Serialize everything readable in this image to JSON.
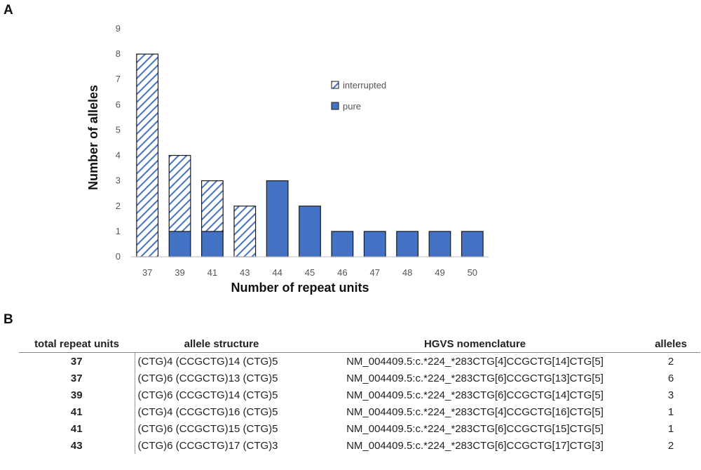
{
  "panel_a_label": "A",
  "panel_b_label": "B",
  "chart_data": {
    "type": "bar",
    "stacked": true,
    "categories": [
      "37",
      "39",
      "41",
      "43",
      "44",
      "45",
      "46",
      "47",
      "48",
      "49",
      "50"
    ],
    "series": [
      {
        "name": "pure",
        "style": "solid",
        "color": "#4472C4",
        "values": [
          0,
          1,
          1,
          0,
          3,
          2,
          1,
          1,
          1,
          1,
          1
        ]
      },
      {
        "name": "interrupted",
        "style": "hatched",
        "color": "#4472C4",
        "values": [
          8,
          3,
          2,
          2,
          0,
          0,
          0,
          0,
          0,
          0,
          0
        ]
      }
    ],
    "legend_order": [
      "interrupted",
      "pure"
    ],
    "legend_position": "upper-middle",
    "xlabel": "Number of repeat units",
    "ylabel": "Number of alleles",
    "ylim": [
      0,
      9
    ],
    "yticks": [
      0,
      1,
      2,
      3,
      4,
      5,
      6,
      7,
      8,
      9
    ],
    "grid": false
  },
  "table": {
    "headers": [
      "total repeat units",
      "allele structure",
      "HGVS nomenclature",
      "alleles"
    ],
    "rows": [
      [
        "37",
        "(CTG)4 (CCGCTG)14 (CTG)5",
        "NM_004409.5:c.*224_*283CTG[4]CCGCTG[14]CTG[5]",
        "2"
      ],
      [
        "37",
        "(CTG)6 (CCGCTG)13 (CTG)5",
        "NM_004409.5:c.*224_*283CTG[6]CCGCTG[13]CTG[5]",
        "6"
      ],
      [
        "39",
        "(CTG)6 (CCGCTG)14 (CTG)5",
        "NM_004409.5:c.*224_*283CTG[6]CCGCTG[14]CTG[5]",
        "3"
      ],
      [
        "41",
        "(CTG)4 (CCGCTG)16 (CTG)5",
        "NM_004409.5:c.*224_*283CTG[4]CCGCTG[16]CTG[5]",
        "1"
      ],
      [
        "41",
        "(CTG)6 (CCGCTG)15 (CTG)5",
        "NM_004409.5:c.*224_*283CTG[6]CCGCTG[15]CTG[5]",
        "1"
      ],
      [
        "43",
        "(CTG)6 (CCGCTG)17 (CTG)3",
        "NM_004409.5:c.*224_*283CTG[6]CCGCTG[17]CTG[3]",
        "2"
      ]
    ]
  }
}
